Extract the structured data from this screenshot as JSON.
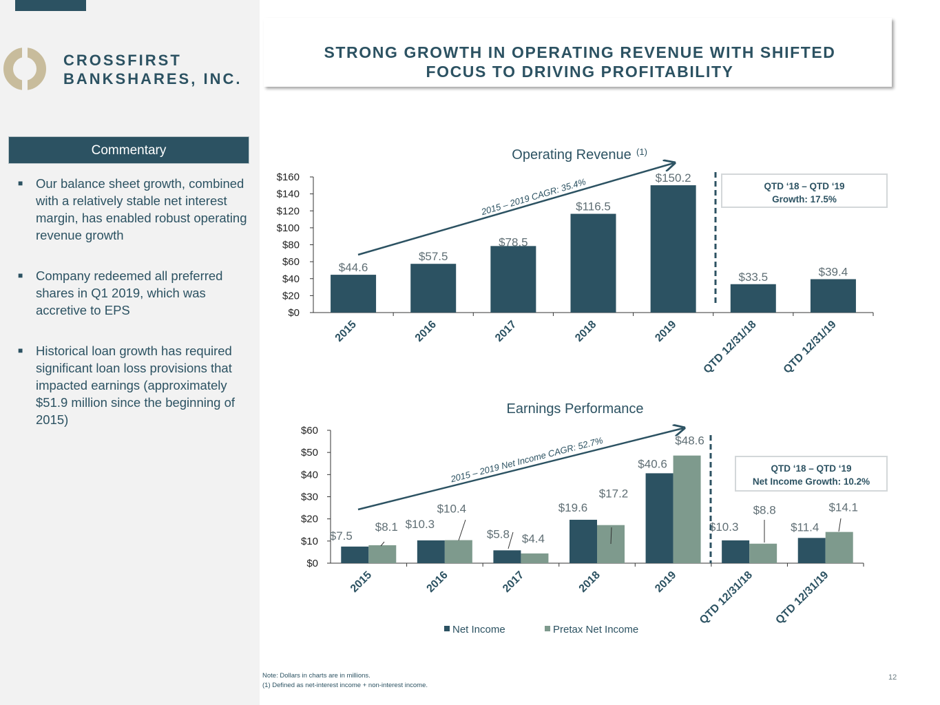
{
  "company": {
    "line1": "CROSSFIRST",
    "line2": "BANKSHARES, INC."
  },
  "title": {
    "line1": "STRONG GROWTH IN OPERATING REVENUE WITH SHIFTED",
    "line2": "FOCUS TO DRIVING PROFITABILITY"
  },
  "commentary": {
    "header": "Commentary",
    "bullets": [
      "Our balance sheet growth, combined with a relatively stable net interest margin, has enabled robust operating revenue growth",
      "Company redeemed all preferred shares in Q1 2019, which was accretive to EPS",
      "Historical loan growth has required significant loan loss provisions that impacted earnings (approximately $51.9 million since the beginning of 2015)"
    ]
  },
  "colors": {
    "dark": "#2c5262",
    "light": "#7e9a8d",
    "accent": "#2c5262"
  },
  "chart_data": [
    {
      "type": "bar",
      "title": "Operating Revenue",
      "title_sup": "(1)",
      "categories": [
        "2015",
        "2016",
        "2017",
        "2018",
        "2019",
        "QTD 12/31/18",
        "QTD 12/31/19"
      ],
      "values": [
        44.6,
        57.5,
        78.5,
        116.5,
        150.2,
        33.5,
        39.4
      ],
      "value_labels": [
        "$44.6",
        "$57.5",
        "$78.5",
        "$116.5",
        "$150.2",
        "$33.5",
        "$39.4"
      ],
      "ylim": [
        0,
        160
      ],
      "yticks": [
        "$0",
        "$20",
        "$40",
        "$60",
        "$80",
        "$100",
        "$120",
        "$140",
        "$160"
      ],
      "annotation": "2015 – 2019 CAGR: 35.4%",
      "callout": {
        "line1": "QTD ‘18 – QTD ‘19",
        "line2": "Growth: 17.5%"
      }
    },
    {
      "type": "bar",
      "title": "Earnings Performance",
      "categories": [
        "2015",
        "2016",
        "2017",
        "2018",
        "2019",
        "QTD 12/31/18",
        "QTD 12/31/19"
      ],
      "series": [
        {
          "name": "Net Income",
          "values": [
            7.5,
            10.3,
            5.8,
            19.6,
            40.6,
            10.3,
            11.4
          ],
          "labels": [
            "$7.5",
            "$10.3",
            "$5.8",
            "$19.6",
            "$40.6",
            "$10.3",
            "$11.4"
          ]
        },
        {
          "name": "Pretax Net Income",
          "values": [
            8.1,
            10.4,
            4.4,
            17.2,
            48.6,
            8.8,
            14.1
          ],
          "labels": [
            "$8.1",
            "$10.4",
            "$4.4",
            "$17.2",
            "$48.6",
            "$8.8",
            "$14.1"
          ]
        }
      ],
      "ylim": [
        0,
        60
      ],
      "yticks": [
        "$0",
        "$10",
        "$20",
        "$30",
        "$40",
        "$50",
        "$60"
      ],
      "annotation": "2015 – 2019 Net Income CAGR: 52.7%",
      "callout": {
        "line1": "QTD ‘18 – QTD ‘19",
        "line2": "Net Income Growth: 10.2%"
      }
    }
  ],
  "footnotes": {
    "note": "Note: Dollars in charts are in millions.",
    "def": "(1)    Defined as net-interest income + non-interest income."
  },
  "page_number": "12"
}
